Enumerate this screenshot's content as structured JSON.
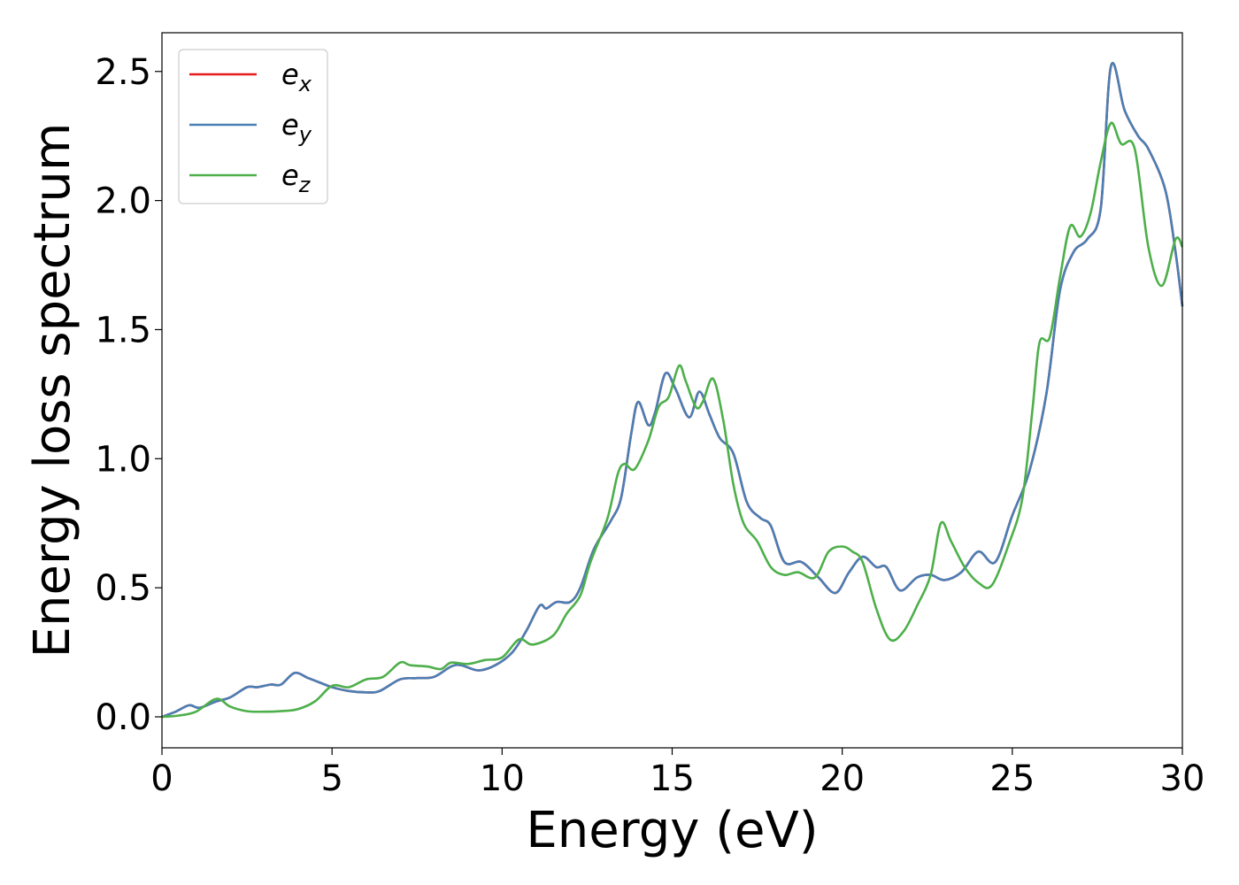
{
  "chart_data": {
    "type": "line",
    "xlabel": "Energy (eV)",
    "ylabel": "Energy loss spectrum",
    "xlim": [
      0,
      30
    ],
    "ylim": [
      -0.12,
      2.65
    ],
    "xticks": [
      0,
      5,
      10,
      15,
      20,
      25,
      30
    ],
    "xtick_labels": [
      "0",
      "5",
      "10",
      "15",
      "20",
      "25",
      "30"
    ],
    "yticks": [
      0.0,
      0.5,
      1.0,
      1.5,
      2.0,
      2.5
    ],
    "ytick_labels": [
      "0.0",
      "0.5",
      "1.0",
      "1.5",
      "2.0",
      "2.5"
    ],
    "grid": false,
    "legend_position": "top-left",
    "series": [
      {
        "name": "e_x",
        "label_base": "e",
        "label_sub": "x",
        "color": "#e41a1c",
        "points": [
          [
            0,
            0
          ],
          [
            0.4,
            0.02
          ],
          [
            0.8,
            0.045
          ],
          [
            1.1,
            0.035
          ],
          [
            1.6,
            0.06
          ],
          [
            2.0,
            0.075
          ],
          [
            2.5,
            0.115
          ],
          [
            2.8,
            0.115
          ],
          [
            3.2,
            0.125
          ],
          [
            3.5,
            0.125
          ],
          [
            3.9,
            0.17
          ],
          [
            4.3,
            0.15
          ],
          [
            4.7,
            0.13
          ],
          [
            5.0,
            0.115
          ],
          [
            5.5,
            0.1
          ],
          [
            6.0,
            0.095
          ],
          [
            6.4,
            0.1
          ],
          [
            7.0,
            0.145
          ],
          [
            7.5,
            0.15
          ],
          [
            8.0,
            0.155
          ],
          [
            8.5,
            0.195
          ],
          [
            8.8,
            0.2
          ],
          [
            9.3,
            0.18
          ],
          [
            9.8,
            0.2
          ],
          [
            10.3,
            0.25
          ],
          [
            10.7,
            0.33
          ],
          [
            11.1,
            0.43
          ],
          [
            11.3,
            0.42
          ],
          [
            11.6,
            0.445
          ],
          [
            12.0,
            0.445
          ],
          [
            12.3,
            0.5
          ],
          [
            12.7,
            0.65
          ],
          [
            13.2,
            0.76
          ],
          [
            13.5,
            0.85
          ],
          [
            13.8,
            1.1
          ],
          [
            14.0,
            1.22
          ],
          [
            14.3,
            1.13
          ],
          [
            14.5,
            1.18
          ],
          [
            14.8,
            1.33
          ],
          [
            15.1,
            1.27
          ],
          [
            15.5,
            1.16
          ],
          [
            15.8,
            1.26
          ],
          [
            16.1,
            1.17
          ],
          [
            16.4,
            1.08
          ],
          [
            16.8,
            1.02
          ],
          [
            17.2,
            0.83
          ],
          [
            17.6,
            0.77
          ],
          [
            17.9,
            0.74
          ],
          [
            18.3,
            0.6
          ],
          [
            18.8,
            0.6
          ],
          [
            19.3,
            0.54
          ],
          [
            19.8,
            0.48
          ],
          [
            20.2,
            0.56
          ],
          [
            20.6,
            0.62
          ],
          [
            21.0,
            0.58
          ],
          [
            21.3,
            0.58
          ],
          [
            21.7,
            0.49
          ],
          [
            22.2,
            0.54
          ],
          [
            22.6,
            0.55
          ],
          [
            23.0,
            0.53
          ],
          [
            23.5,
            0.56
          ],
          [
            24.0,
            0.64
          ],
          [
            24.5,
            0.6
          ],
          [
            25.0,
            0.78
          ],
          [
            25.5,
            0.95
          ],
          [
            26.0,
            1.25
          ],
          [
            26.4,
            1.65
          ],
          [
            26.8,
            1.8
          ],
          [
            27.2,
            1.85
          ],
          [
            27.6,
            1.97
          ],
          [
            27.9,
            2.52
          ],
          [
            28.3,
            2.35
          ],
          [
            28.7,
            2.25
          ],
          [
            29.0,
            2.2
          ],
          [
            29.5,
            2.04
          ],
          [
            29.8,
            1.8
          ],
          [
            30.0,
            1.59
          ]
        ]
      },
      {
        "name": "e_y",
        "label_base": "e",
        "label_sub": "y",
        "color": "#4a7fb5",
        "points": [
          [
            0,
            0
          ],
          [
            0.4,
            0.02
          ],
          [
            0.8,
            0.045
          ],
          [
            1.1,
            0.035
          ],
          [
            1.6,
            0.06
          ],
          [
            2.0,
            0.075
          ],
          [
            2.5,
            0.115
          ],
          [
            2.8,
            0.115
          ],
          [
            3.2,
            0.125
          ],
          [
            3.5,
            0.125
          ],
          [
            3.9,
            0.17
          ],
          [
            4.3,
            0.15
          ],
          [
            4.7,
            0.13
          ],
          [
            5.0,
            0.115
          ],
          [
            5.5,
            0.1
          ],
          [
            6.0,
            0.095
          ],
          [
            6.4,
            0.1
          ],
          [
            7.0,
            0.145
          ],
          [
            7.5,
            0.15
          ],
          [
            8.0,
            0.155
          ],
          [
            8.5,
            0.195
          ],
          [
            8.8,
            0.2
          ],
          [
            9.3,
            0.18
          ],
          [
            9.8,
            0.2
          ],
          [
            10.3,
            0.25
          ],
          [
            10.7,
            0.33
          ],
          [
            11.1,
            0.43
          ],
          [
            11.3,
            0.42
          ],
          [
            11.6,
            0.445
          ],
          [
            12.0,
            0.445
          ],
          [
            12.3,
            0.5
          ],
          [
            12.7,
            0.65
          ],
          [
            13.2,
            0.76
          ],
          [
            13.5,
            0.85
          ],
          [
            13.8,
            1.1
          ],
          [
            14.0,
            1.22
          ],
          [
            14.3,
            1.13
          ],
          [
            14.5,
            1.18
          ],
          [
            14.8,
            1.33
          ],
          [
            15.1,
            1.27
          ],
          [
            15.5,
            1.16
          ],
          [
            15.8,
            1.26
          ],
          [
            16.1,
            1.17
          ],
          [
            16.4,
            1.08
          ],
          [
            16.8,
            1.02
          ],
          [
            17.2,
            0.83
          ],
          [
            17.6,
            0.77
          ],
          [
            17.9,
            0.74
          ],
          [
            18.3,
            0.6
          ],
          [
            18.8,
            0.6
          ],
          [
            19.3,
            0.54
          ],
          [
            19.8,
            0.48
          ],
          [
            20.2,
            0.56
          ],
          [
            20.6,
            0.62
          ],
          [
            21.0,
            0.58
          ],
          [
            21.3,
            0.58
          ],
          [
            21.7,
            0.49
          ],
          [
            22.2,
            0.54
          ],
          [
            22.6,
            0.55
          ],
          [
            23.0,
            0.53
          ],
          [
            23.5,
            0.56
          ],
          [
            24.0,
            0.64
          ],
          [
            24.5,
            0.6
          ],
          [
            25.0,
            0.78
          ],
          [
            25.5,
            0.95
          ],
          [
            26.0,
            1.25
          ],
          [
            26.4,
            1.65
          ],
          [
            26.8,
            1.8
          ],
          [
            27.2,
            1.85
          ],
          [
            27.6,
            1.97
          ],
          [
            27.9,
            2.52
          ],
          [
            28.3,
            2.35
          ],
          [
            28.7,
            2.25
          ],
          [
            29.0,
            2.2
          ],
          [
            29.5,
            2.04
          ],
          [
            29.8,
            1.8
          ],
          [
            30.0,
            1.59
          ]
        ]
      },
      {
        "name": "e_z",
        "label_base": "e",
        "label_sub": "z",
        "color": "#4daf4a",
        "points": [
          [
            0,
            0
          ],
          [
            0.5,
            0.005
          ],
          [
            1.0,
            0.02
          ],
          [
            1.6,
            0.07
          ],
          [
            2.0,
            0.04
          ],
          [
            2.5,
            0.022
          ],
          [
            3.0,
            0.02
          ],
          [
            3.5,
            0.022
          ],
          [
            4.0,
            0.03
          ],
          [
            4.5,
            0.06
          ],
          [
            5.0,
            0.12
          ],
          [
            5.5,
            0.115
          ],
          [
            6.0,
            0.145
          ],
          [
            6.5,
            0.155
          ],
          [
            7.0,
            0.21
          ],
          [
            7.3,
            0.2
          ],
          [
            7.8,
            0.195
          ],
          [
            8.2,
            0.185
          ],
          [
            8.5,
            0.21
          ],
          [
            9.0,
            0.205
          ],
          [
            9.5,
            0.22
          ],
          [
            10.0,
            0.23
          ],
          [
            10.5,
            0.3
          ],
          [
            10.9,
            0.28
          ],
          [
            11.5,
            0.315
          ],
          [
            11.9,
            0.4
          ],
          [
            12.3,
            0.47
          ],
          [
            12.6,
            0.6
          ],
          [
            13.1,
            0.77
          ],
          [
            13.4,
            0.94
          ],
          [
            13.6,
            0.98
          ],
          [
            13.9,
            0.96
          ],
          [
            14.3,
            1.07
          ],
          [
            14.6,
            1.2
          ],
          [
            14.9,
            1.24
          ],
          [
            15.2,
            1.36
          ],
          [
            15.4,
            1.3
          ],
          [
            15.7,
            1.2
          ],
          [
            15.9,
            1.22
          ],
          [
            16.2,
            1.31
          ],
          [
            16.5,
            1.15
          ],
          [
            16.8,
            0.9
          ],
          [
            17.1,
            0.75
          ],
          [
            17.5,
            0.68
          ],
          [
            17.9,
            0.58
          ],
          [
            18.3,
            0.55
          ],
          [
            18.7,
            0.56
          ],
          [
            19.2,
            0.54
          ],
          [
            19.6,
            0.64
          ],
          [
            20.0,
            0.66
          ],
          [
            20.3,
            0.64
          ],
          [
            20.6,
            0.6
          ],
          [
            21.0,
            0.42
          ],
          [
            21.4,
            0.3
          ],
          [
            21.8,
            0.33
          ],
          [
            22.2,
            0.43
          ],
          [
            22.6,
            0.55
          ],
          [
            22.9,
            0.75
          ],
          [
            23.2,
            0.68
          ],
          [
            23.6,
            0.58
          ],
          [
            24.0,
            0.52
          ],
          [
            24.4,
            0.51
          ],
          [
            24.9,
            0.67
          ],
          [
            25.3,
            0.85
          ],
          [
            25.6,
            1.2
          ],
          [
            25.8,
            1.45
          ],
          [
            26.1,
            1.47
          ],
          [
            26.4,
            1.7
          ],
          [
            26.7,
            1.9
          ],
          [
            27.0,
            1.86
          ],
          [
            27.3,
            1.95
          ],
          [
            27.6,
            2.15
          ],
          [
            27.9,
            2.3
          ],
          [
            28.2,
            2.22
          ],
          [
            28.6,
            2.2
          ],
          [
            29.0,
            1.82
          ],
          [
            29.4,
            1.67
          ],
          [
            29.8,
            1.85
          ],
          [
            30.0,
            1.82
          ]
        ]
      }
    ]
  }
}
